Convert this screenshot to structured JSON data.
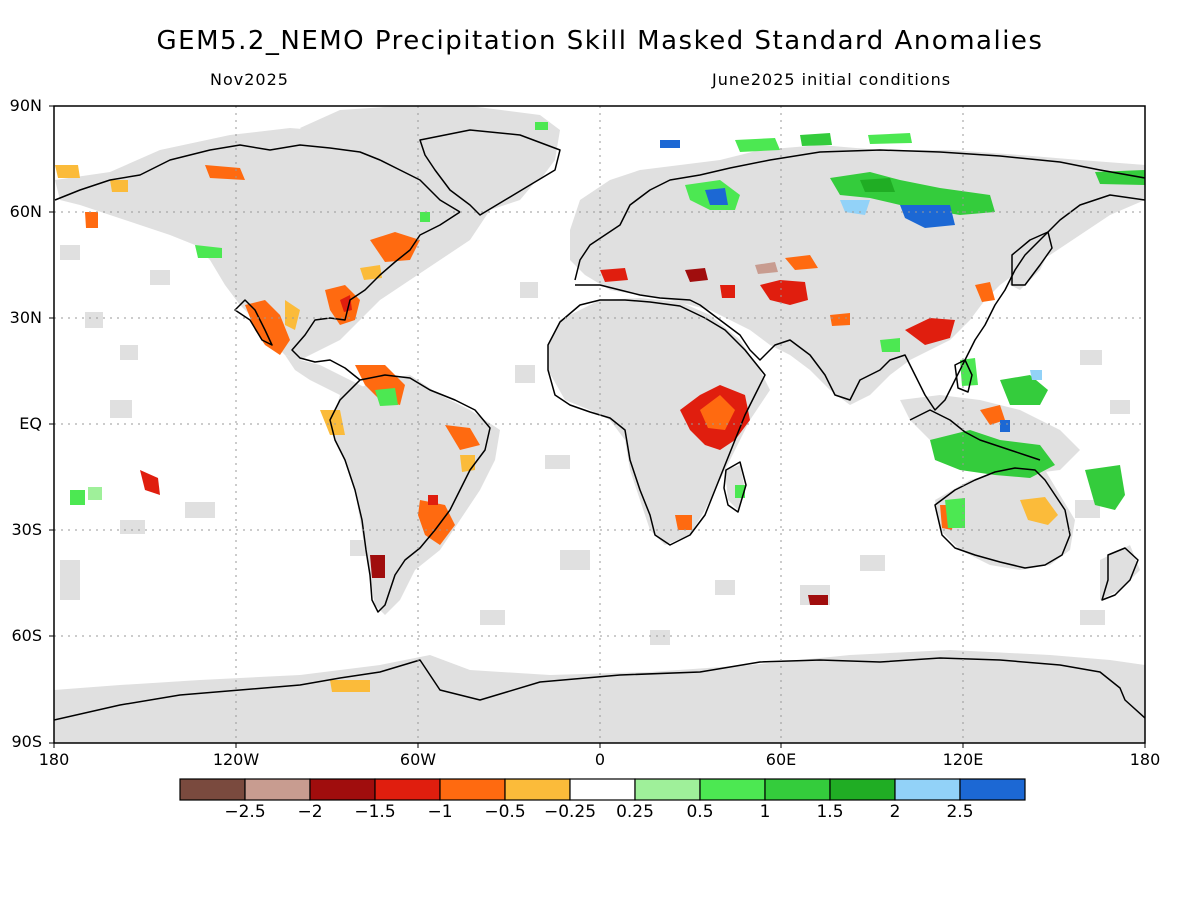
{
  "title": "GEM5.2_NEMO Precipitation Skill Masked Standard Anomalies",
  "subtitle_left": "Nov2025",
  "subtitle_right": "June2025 initial conditions",
  "lat_ticks": [
    "90N",
    "60N",
    "30N",
    "EQ",
    "30S",
    "60S",
    "90S"
  ],
  "lon_ticks": [
    "180",
    "120W",
    "60W",
    "0",
    "60E",
    "120E",
    "180"
  ],
  "colorbar": {
    "colors": [
      "#7a4a3e",
      "#c89c90",
      "#a00d0d",
      "#e01e0e",
      "#ff6a10",
      "#fbbb3a",
      "#ffffff",
      "#9ff09a",
      "#4ce852",
      "#34cc3c",
      "#20ad24",
      "#92d2f8",
      "#1c68d4"
    ],
    "labels": [
      "−2.5",
      "−2",
      "−1.5",
      "−1",
      "−0.5",
      "−0.25",
      "0.25",
      "0.5",
      "1",
      "1.5",
      "2",
      "2.5"
    ]
  },
  "colors": {
    "land_mask": "#e0e0e0",
    "coastline": "#000000",
    "grid": "#999999"
  }
}
